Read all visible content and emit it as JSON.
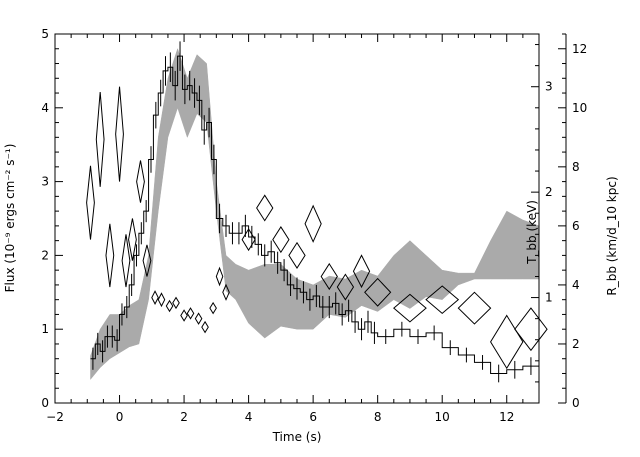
{
  "chart_data": {
    "type": "scatter",
    "xlabel": "Time (s)",
    "ylabel": "Flux (10⁻⁹ ergs cm⁻² s⁻¹)",
    "y2label_temperature": "T_bb (keV)",
    "y2label_radius": "R_bb (km/d_10 kpc)",
    "x_axis": {
      "range": [
        -2,
        13
      ],
      "ticks": [
        -2,
        0,
        2,
        4,
        6,
        8,
        10,
        12
      ]
    },
    "y_axis_flux": {
      "range": [
        0,
        5
      ],
      "ticks": [
        0,
        1,
        2,
        3,
        4,
        5
      ]
    },
    "y_axis_temperature": {
      "range": [
        0,
        3.5
      ],
      "ticks": [
        1,
        2,
        3
      ]
    },
    "y_axis_radius": {
      "range": [
        0,
        12.5
      ],
      "ticks": [
        0,
        2,
        4,
        6,
        8,
        10,
        12
      ]
    },
    "grid": false,
    "flux_histogram": {
      "name": "",
      "edges": [
        -0.9,
        -0.75,
        -0.6,
        -0.45,
        -0.3,
        -0.15,
        0,
        0.15,
        0.3,
        0.45,
        0.6,
        0.75,
        0.9,
        1.05,
        1.2,
        1.35,
        1.5,
        1.65,
        1.8,
        1.95,
        2.1,
        2.25,
        2.4,
        2.55,
        2.7,
        2.85,
        3.0,
        3.2,
        3.4,
        3.6,
        3.8,
        4.0,
        4.2,
        4.4,
        4.6,
        4.8,
        5.0,
        5.2,
        5.4,
        5.6,
        5.8,
        6.0,
        6.2,
        6.4,
        6.6,
        6.8,
        7.0,
        7.2,
        7.4,
        7.6,
        7.8,
        8.0,
        8.5,
        9.0,
        9.5,
        10.0,
        10.5,
        11.0,
        11.5,
        12.0,
        12.5,
        13.0
      ],
      "values": [
        0.6,
        0.8,
        0.7,
        0.9,
        0.9,
        0.85,
        1.2,
        1.3,
        1.6,
        2.0,
        2.3,
        2.6,
        3.3,
        3.9,
        4.2,
        4.5,
        4.55,
        4.3,
        4.7,
        4.25,
        4.3,
        4.2,
        4.1,
        3.7,
        3.8,
        3.3,
        2.5,
        2.4,
        2.3,
        2.3,
        2.4,
        2.25,
        2.15,
        2.0,
        2.05,
        1.9,
        1.8,
        1.6,
        1.55,
        1.5,
        1.4,
        1.45,
        1.3,
        1.3,
        1.35,
        1.2,
        1.25,
        1.1,
        1.0,
        1.1,
        0.95,
        0.9,
        1.0,
        0.9,
        0.95,
        0.75,
        0.65,
        0.55,
        0.4,
        0.45,
        0.5
      ],
      "errors": [
        0.15,
        0.15,
        0.15,
        0.15,
        0.15,
        0.15,
        0.15,
        0.15,
        0.15,
        0.15,
        0.15,
        0.15,
        0.18,
        0.18,
        0.18,
        0.2,
        0.2,
        0.2,
        0.2,
        0.2,
        0.2,
        0.2,
        0.2,
        0.2,
        0.2,
        0.2,
        0.2,
        0.15,
        0.15,
        0.15,
        0.15,
        0.15,
        0.15,
        0.15,
        0.15,
        0.15,
        0.15,
        0.15,
        0.15,
        0.15,
        0.15,
        0.15,
        0.15,
        0.15,
        0.15,
        0.15,
        0.15,
        0.15,
        0.15,
        0.15,
        0.15,
        0.1,
        0.1,
        0.1,
        0.1,
        0.1,
        0.1,
        0.1,
        0.12,
        0.12,
        0.12
      ]
    },
    "radius_band": {
      "name": "",
      "axis": "radius",
      "x": [
        -0.9,
        -0.6,
        -0.3,
        0,
        0.3,
        0.6,
        0.9,
        1.2,
        1.5,
        1.8,
        2.1,
        2.4,
        2.7,
        3.0,
        3.3,
        3.6,
        4.0,
        4.5,
        5.0,
        5.5,
        6.0,
        6.5,
        7.0,
        7.5,
        8.0,
        8.5,
        9.0,
        9.5,
        10.0,
        10.5,
        11.0,
        11.5,
        12.0,
        12.5,
        13.0
      ],
      "lower": [
        0.8,
        1.2,
        1.5,
        1.7,
        1.9,
        2.0,
        3.5,
        6.5,
        9.0,
        10.0,
        9.0,
        9.8,
        9.5,
        6.5,
        3.8,
        3.5,
        2.7,
        2.2,
        2.6,
        2.5,
        2.5,
        3.0,
        2.9,
        3.3,
        3.1,
        3.5,
        3.2,
        3.6,
        3.5,
        4.0,
        4.2,
        4.2,
        4.2,
        4.2,
        4.2
      ],
      "upper": [
        1.6,
        2.5,
        3.0,
        3.0,
        3.3,
        3.5,
        5.0,
        9.0,
        11.0,
        12.0,
        11.0,
        11.8,
        11.5,
        7.5,
        5.0,
        4.7,
        4.5,
        4.7,
        4.7,
        4.2,
        4.0,
        4.3,
        4.2,
        4.5,
        4.3,
        5.0,
        5.5,
        5.0,
        4.5,
        4.4,
        4.4,
        5.5,
        6.5,
        6.2,
        6.0
      ]
    },
    "temperature_points": {
      "name": "",
      "axis": "temperature",
      "x": [
        -0.9,
        -0.6,
        -0.3,
        0,
        0.2,
        0.4,
        0.65,
        0.85,
        1.1,
        1.3,
        1.55,
        1.75,
        2.0,
        2.2,
        2.45,
        2.65,
        2.9,
        3.1,
        3.3,
        4.0,
        4.5,
        5.0,
        5.5,
        6.0,
        6.5,
        7.0,
        7.5,
        8.0,
        9.0,
        10.0,
        11.0,
        12.0,
        12.75
      ],
      "y": [
        1.9,
        2.5,
        1.4,
        2.55,
        1.35,
        1.55,
        2.1,
        1.35,
        1.0,
        0.98,
        0.92,
        0.95,
        0.83,
        0.85,
        0.8,
        0.72,
        0.9,
        1.2,
        1.05,
        1.55,
        1.85,
        1.55,
        1.4,
        1.7,
        1.2,
        1.1,
        1.25,
        1.05,
        0.9,
        0.98,
        0.9,
        0.58,
        0.7
      ],
      "half_width_x": [
        0.12,
        0.12,
        0.12,
        0.12,
        0.12,
        0.12,
        0.12,
        0.12,
        0.1,
        0.1,
        0.1,
        0.1,
        0.1,
        0.1,
        0.1,
        0.1,
        0.1,
        0.1,
        0.1,
        0.2,
        0.25,
        0.25,
        0.25,
        0.25,
        0.25,
        0.25,
        0.25,
        0.4,
        0.5,
        0.5,
        0.5,
        0.5,
        0.5
      ],
      "half_err_y": [
        0.35,
        0.45,
        0.3,
        0.45,
        0.25,
        0.2,
        0.2,
        0.15,
        0.06,
        0.06,
        0.05,
        0.05,
        0.05,
        0.05,
        0.05,
        0.05,
        0.05,
        0.08,
        0.07,
        0.1,
        0.12,
        0.12,
        0.12,
        0.17,
        0.12,
        0.12,
        0.15,
        0.13,
        0.13,
        0.13,
        0.15,
        0.25,
        0.2
      ]
    }
  }
}
